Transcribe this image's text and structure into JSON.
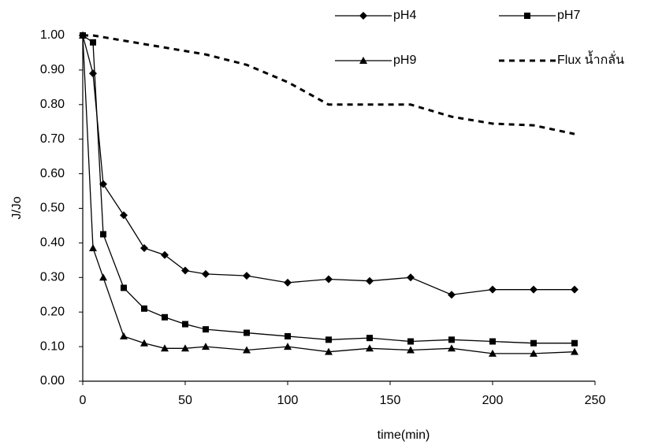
{
  "chart_data": {
    "type": "line",
    "x_label": "time(min)",
    "y_label": "J/Jo",
    "x": [
      0,
      5,
      10,
      20,
      30,
      40,
      50,
      60,
      80,
      100,
      120,
      140,
      160,
      180,
      200,
      220,
      240
    ],
    "series": [
      {
        "name": "pH4",
        "color": "#000000",
        "marker": "diamond",
        "line_style": "solid",
        "values": [
          1.0,
          0.89,
          0.57,
          0.48,
          0.385,
          0.365,
          0.32,
          0.31,
          0.305,
          0.285,
          0.295,
          0.29,
          0.3,
          0.25,
          0.265,
          0.265,
          0.265
        ]
      },
      {
        "name": "pH7",
        "color": "#000000",
        "marker": "square",
        "line_style": "solid",
        "values": [
          1.0,
          0.98,
          0.425,
          0.27,
          0.21,
          0.185,
          0.165,
          0.15,
          0.14,
          0.13,
          0.12,
          0.125,
          0.115,
          0.12,
          0.115,
          0.11,
          0.11
        ]
      },
      {
        "name": "pH9",
        "color": "#000000",
        "marker": "triangle",
        "line_style": "solid",
        "values": [
          1.0,
          0.385,
          0.3,
          0.13,
          0.11,
          0.095,
          0.095,
          0.1,
          0.09,
          0.1,
          0.085,
          0.095,
          0.09,
          0.095,
          0.08,
          0.08,
          0.085
        ]
      },
      {
        "name": "Flux น้ำกลั่น",
        "color": "#000000",
        "marker": "none",
        "line_style": "dashed",
        "values": [
          1.0,
          1.0,
          0.995,
          0.985,
          0.975,
          0.965,
          0.955,
          0.945,
          0.915,
          0.865,
          0.8,
          0.8,
          0.8,
          0.765,
          0.745,
          0.74,
          0.715
        ]
      }
    ],
    "xlim": [
      0,
      250
    ],
    "xticks": [
      0,
      50,
      100,
      150,
      200,
      250
    ],
    "ylim": [
      0,
      1
    ],
    "yticks": [
      {
        "value": 0,
        "label": "0.00"
      },
      {
        "value": 0.1,
        "label": "0.10"
      },
      {
        "value": 0.2,
        "label": "0.20"
      },
      {
        "value": 0.3,
        "label": "0.30"
      },
      {
        "value": 0.4,
        "label": "0.40"
      },
      {
        "value": 0.5,
        "label": "0.50"
      },
      {
        "value": 0.6,
        "label": "0.60"
      },
      {
        "value": 0.7,
        "label": "0.70"
      },
      {
        "value": 0.8,
        "label": "0.80"
      },
      {
        "value": 0.9,
        "label": "0.90"
      },
      {
        "value": 1,
        "label": "1.00"
      }
    ],
    "grid": false,
    "legend_position": "top"
  }
}
